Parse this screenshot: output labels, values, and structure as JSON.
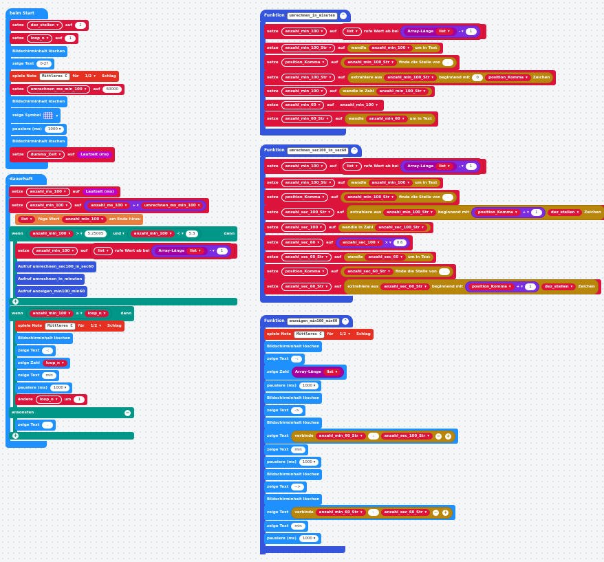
{
  "colors": {
    "basic": "#1e90ff",
    "variable": "#dc143c",
    "logic": "#009688",
    "math": "#7b2be0",
    "music": "#e63022",
    "text": "#b8860b",
    "array": "#a4009f",
    "function": "#3455db",
    "input": "#c000c8",
    "loops": "#00aa00"
  },
  "start": {
    "title": "beim Start",
    "b1": {
      "l1": "setze",
      "var": "dez_stellen",
      "l2": "auf",
      "v": "2"
    },
    "b2": {
      "l1": "setze",
      "var": "loop_n",
      "l2": "auf",
      "v": "1"
    },
    "b3": "Bildschirminhalt löschen",
    "b4": {
      "l1": "zeige Text",
      "v": "0-2?"
    },
    "b5": {
      "l1": "spiele Note",
      "note": "Mittleres C",
      "l2": "für",
      "dur": "1/2",
      "l3": "Schlag"
    },
    "b6": {
      "l1": "setze",
      "var": "umrechnen_ms_min_100",
      "l2": "auf",
      "v": "60000"
    },
    "b7": "Bildschirminhalt löschen",
    "b8": {
      "l1": "zeige Symbol"
    },
    "b9": {
      "l1": "pausiere (ms)",
      "v": "1000"
    },
    "b10": "Bildschirminhalt löschen",
    "b11": {
      "l1": "setze",
      "var": "dummy_Zeit",
      "l2": "auf",
      "v": "Laufzeit (ms)"
    }
  },
  "forever": {
    "title": "dauerhaft",
    "b1": {
      "l1": "setze",
      "var": "anzahl_ms_100",
      "l2": "auf",
      "v": "Laufzeit (ms)"
    },
    "b2": {
      "l1": "setze",
      "var": "anzahl_min_100",
      "l2": "auf",
      "a": "anzahl_ms_100",
      "op": "÷",
      "b": "umrechnen_ms_min_100"
    },
    "b3": {
      "list": "list",
      "l1": "füge Wert",
      "var": "anzahl_min_100",
      "l2": "am Ende hinzu"
    },
    "if1": {
      "l1": "wenn",
      "a": "anzahl_min_100",
      "op1": ">",
      "v1": "5.25005",
      "and": "und",
      "b": "anzahl_min_100",
      "op2": "<",
      "v2": "5.3",
      "then": "dann"
    },
    "if1_b1": {
      "l1": "setze",
      "var": "anzahl_min_100",
      "l2": "auf",
      "list": "list",
      "l3": "rufe Wert ab bei",
      "arr": "Array-Länge",
      "list2": "list",
      "op": "-",
      "v": "1"
    },
    "if1_b2": "Aufruf umrechnen_sec100_in_sec60",
    "if1_b3": "Aufruf umrechnen_in_minuten",
    "if1_b4": "Aufruf anzeigen_min100_min60",
    "if2": {
      "l1": "wenn",
      "a": "anzahl_min_100",
      "op": "≥",
      "b": "loop_n",
      "then": "dann"
    },
    "if2_b1": {
      "l1": "spiele Note",
      "note": "Mittleres C",
      "l2": "für",
      "dur": "1/2",
      "l3": "Schlag"
    },
    "if2_b2": "Bildschirminhalt löschen",
    "if2_b3": {
      "l1": "zeige Text",
      "v": " -: "
    },
    "if2_b4": {
      "l1": "zeige Zahl",
      "v": "loop_n"
    },
    "if2_b5": {
      "l1": "zeige Text",
      "v": " min "
    },
    "if2_b6": {
      "l1": "pausiere (ms)",
      "v": "1000"
    },
    "if2_b7": {
      "l1": "ändere",
      "var": "loop_n",
      "l2": "um",
      "v": "1"
    },
    "else": "ansonsten",
    "else_b1": {
      "l1": "zeige Text",
      "v": " . "
    }
  },
  "func1": {
    "label": "Funktion",
    "name": "umrechnen_in_minuten",
    "b1": {
      "l1": "setze",
      "var": "anzahl_min_100",
      "l2": "auf",
      "list": "list",
      "l3": "rufe Wert ab bei",
      "arr": "Array-Länge",
      "list2": "list",
      "op": "-",
      "v": "1"
    },
    "b2": {
      "l1": "setze",
      "var": "anzahl_min_100_Str",
      "l2": "auf",
      "w": "wandle",
      "a": "anzahl_min_100",
      "l3": "um in Text"
    },
    "b3": {
      "l1": "setze",
      "var": "position_Komma",
      "l2": "auf",
      "a": "anzahl_min_100_Str",
      "l3": "finde die Stelle von",
      "v": " . "
    },
    "b4": {
      "l1": "setze",
      "var": "anzahl_min_100_Str",
      "l2": "auf",
      "x": "extrahiere aus",
      "a": "anzahl_min_100_Str",
      "l3": "beginnend mit",
      "v": "0",
      "b": "position_Komma",
      "l4": "Zeichen"
    },
    "b5": {
      "l1": "setze",
      "var": "anzahl_min_100",
      "l2": "auf",
      "w": "wandle in Zahl",
      "a": "anzahl_min_100_Str"
    },
    "b6": {
      "l1": "setze",
      "var": "anzahl_min_60",
      "l2": "auf",
      "a": "anzahl_min_100"
    },
    "b7": {
      "l1": "setze",
      "var": "anzahl_min_60_Str",
      "l2": "auf",
      "w": "wandle",
      "a": "anzahl_min_60",
      "l3": "um in Text"
    }
  },
  "func2": {
    "label": "Funktion",
    "name": "umrechnen_sec100_in_sec60",
    "b1": {
      "l1": "setze",
      "var": "anzahl_min_100",
      "l2": "auf",
      "list": "list",
      "l3": "rufe Wert ab bei",
      "arr": "Array-Länge",
      "list2": "list",
      "op": "-",
      "v": "1"
    },
    "b2": {
      "l1": "setze",
      "var": "anzahl_min_100_Str",
      "l2": "auf",
      "w": "wandle",
      "a": "anzahl_min_100",
      "l3": "um in Text"
    },
    "b3": {
      "l1": "setze",
      "var": "position_Komma",
      "l2": "auf",
      "a": "anzahl_min_100_Str",
      "l3": "finde die Stelle von",
      "v": " . "
    },
    "b4": {
      "l1": "setze",
      "var": "anzahl_sec_100_Str",
      "l2": "auf",
      "x": "extrahiere aus",
      "a": "anzahl_min_100_Str",
      "l3": "beginnend mit",
      "b": "position_Komma",
      "op": "+",
      "v": "1",
      "c": "dez_stellen",
      "l4": "Zeichen"
    },
    "b5": {
      "l1": "setze",
      "var": "anzahl_sec_100",
      "l2": "auf",
      "w": "wandle in Zahl",
      "a": "anzahl_sec_100_Str"
    },
    "b6": {
      "l1": "setze",
      "var": "anzahl_sec_60",
      "l2": "auf",
      "a": "anzahl_sec_100",
      "op": "×",
      "v": "0.6"
    },
    "b7": {
      "l1": "setze",
      "var": "anzahl_sec_60_Str",
      "l2": "auf",
      "w": "wandle",
      "a": "anzahl_sec_60",
      "l3": "um in Text"
    },
    "b8": {
      "l1": "setze",
      "var": "position_Komma",
      "l2": "auf",
      "a": "anzahl_sec_60_Str",
      "l3": "finde die Stelle von",
      "v": " . "
    },
    "b9": {
      "l1": "setze",
      "var": "anzahl_sec_60_Str",
      "l2": "auf",
      "x": "extrahiere aus",
      "a": "anzahl_sec_60_Str",
      "l3": "beginnend mit",
      "b": "position_Komma",
      "op": "+",
      "v": "1",
      "c": "dez_stellen",
      "l4": "Zeichen"
    }
  },
  "func3": {
    "label": "Funktion",
    "name": "anzeigen_min100_min60",
    "b1": {
      "l1": "spiele Note",
      "note": "Mittleres C",
      "l2": "für",
      "dur": "1/2",
      "l3": "Schlag"
    },
    "b2": "Bildschirminhalt löschen",
    "b3": {
      "l1": "zeige Text",
      "v": " -: "
    },
    "b4": {
      "l1": "zeige Zahl",
      "arr": "Array-Länge",
      "list": "list"
    },
    "b5": {
      "l1": "pausiere (ms)",
      "v": "1000"
    },
    "b6": "Bildschirminhalt löschen",
    "b7": {
      "l1": "zeige Text",
      "v": " -> "
    },
    "b8": "Bildschirminhalt löschen",
    "b9": {
      "l1": "zeige Text",
      "join": "verbinde",
      "a": "anzahl_min_60_Str",
      "mid": " : ",
      "b": "anzahl_sec_100_Str"
    },
    "b10": {
      "l1": "zeige Text",
      "v": " min "
    },
    "b11": {
      "l1": "pausiere (ms)",
      "v": "1000"
    },
    "b12": "Bildschirminhalt löschen",
    "b13": {
      "l1": "zeige Text",
      "v": " --> "
    },
    "b14": "Bildschirminhalt löschen",
    "b15": {
      "l1": "zeige Text",
      "join": "verbinde",
      "a": "anzahl_min_60_Str",
      "mid": " : ",
      "b": "anzahl_sec_60_Str"
    },
    "b16": {
      "l1": "zeige Text",
      "v": " min "
    },
    "b17": {
      "l1": "pausiere (ms)",
      "v": "1000"
    }
  }
}
